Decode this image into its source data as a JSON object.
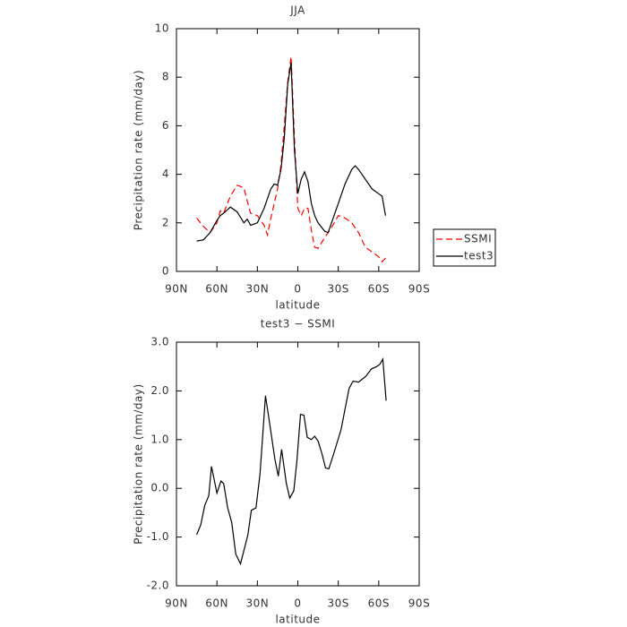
{
  "chart_data": [
    {
      "type": "line",
      "title": "JJA",
      "xlabel": "latitude",
      "ylabel": "Precipitation rate (mm/day)",
      "x": [
        75,
        70,
        65,
        60,
        57.5,
        55,
        50,
        45,
        40,
        37.5,
        35,
        30,
        25,
        22.5,
        20,
        17.5,
        15,
        12.5,
        10,
        7.5,
        5,
        2.5,
        0,
        -2.5,
        -5,
        -7.5,
        -10,
        -12.5,
        -15,
        -20,
        -22.5,
        -25,
        -30,
        -35,
        -40,
        -42.5,
        -45,
        -50,
        -55,
        -60,
        -62.5,
        -65
      ],
      "series": [
        {
          "name": "SSMI",
          "color": "#ff0000",
          "dash": true,
          "values": [
            2.2,
            1.85,
            1.6,
            2.0,
            2.5,
            2.4,
            3.1,
            3.55,
            3.45,
            2.9,
            2.4,
            2.3,
            1.9,
            1.5,
            2.2,
            2.8,
            3.4,
            4.4,
            6.0,
            7.8,
            8.85,
            5.5,
            2.6,
            2.3,
            2.6,
            2.6,
            1.7,
            1.0,
            0.95,
            1.4,
            1.6,
            1.8,
            2.3,
            2.2,
            2.0,
            1.8,
            1.6,
            1.0,
            0.8,
            0.6,
            0.4,
            0.55
          ]
        },
        {
          "name": "test3",
          "color": "#000000",
          "dash": false,
          "values": [
            1.25,
            1.3,
            1.6,
            2.1,
            2.3,
            2.4,
            2.65,
            2.45,
            2.0,
            2.15,
            1.9,
            2.0,
            2.6,
            3.0,
            3.4,
            3.6,
            3.55,
            4.2,
            5.5,
            7.7,
            8.6,
            5.0,
            3.2,
            3.8,
            4.1,
            3.7,
            2.8,
            2.3,
            2.0,
            1.65,
            1.6,
            2.0,
            2.8,
            3.6,
            4.2,
            4.35,
            4.2,
            3.8,
            3.4,
            3.2,
            3.1,
            2.3
          ]
        }
      ],
      "xlim": [
        90,
        -90
      ],
      "xticks": [
        {
          "value": 90,
          "label": "90N"
        },
        {
          "value": 60,
          "label": "60N"
        },
        {
          "value": 30,
          "label": "30N"
        },
        0,
        {
          "value": -30,
          "label": "30S"
        },
        {
          "value": -60,
          "label": "60S"
        },
        {
          "value": -90,
          "label": "90S"
        }
      ],
      "ylim": [
        0,
        10
      ],
      "yticks": [
        0,
        2,
        4,
        6,
        8,
        10
      ],
      "legend": "right"
    },
    {
      "type": "line",
      "title": "test3 − SSMI",
      "xlabel": "latitude",
      "ylabel": "Precipitation rate (mm/day)",
      "x": [
        75,
        72,
        69,
        66,
        64,
        60,
        57,
        55,
        52,
        49,
        46,
        42.5,
        37,
        34.5,
        31,
        28,
        24,
        21,
        17,
        14.5,
        12,
        8.5,
        6,
        3,
        0.7,
        -2,
        -4.5,
        -7,
        -10,
        -12.5,
        -15,
        -18,
        -20.5,
        -23,
        -26.5,
        -32,
        -38,
        -41,
        -45,
        -50.5,
        -54.5,
        -58.5,
        -61,
        -63,
        -65.5
      ],
      "values": [
        -0.95,
        -0.75,
        -0.35,
        -0.15,
        0.45,
        -0.1,
        0.15,
        0.1,
        -0.4,
        -0.7,
        -1.35,
        -1.55,
        -0.95,
        -0.45,
        -0.4,
        0.3,
        1.9,
        1.35,
        0.6,
        0.25,
        0.8,
        0.1,
        -0.2,
        -0.05,
        0.55,
        1.52,
        1.5,
        1.05,
        1.0,
        1.07,
        0.97,
        0.7,
        0.42,
        0.4,
        0.7,
        1.2,
        2.05,
        2.2,
        2.18,
        2.3,
        2.45,
        2.5,
        2.55,
        2.65,
        1.8
      ],
      "color": "#000000",
      "xlim": [
        90,
        -90
      ],
      "xticks": [
        {
          "value": 90,
          "label": "90N"
        },
        {
          "value": 60,
          "label": "60N"
        },
        {
          "value": 30,
          "label": "30N"
        },
        0,
        {
          "value": -30,
          "label": "30S"
        },
        {
          "value": -60,
          "label": "60S"
        },
        {
          "value": -90,
          "label": "90S"
        }
      ],
      "ylim": [
        -2,
        3
      ],
      "yticks": [
        {
          "value": -2,
          "label": "-2.0"
        },
        {
          "value": -1,
          "label": "-1.0"
        },
        {
          "value": 0,
          "label": "0.0"
        },
        {
          "value": 1,
          "label": "1.0"
        },
        {
          "value": 2,
          "label": "2.0"
        },
        {
          "value": 3,
          "label": "3.0"
        }
      ]
    }
  ]
}
